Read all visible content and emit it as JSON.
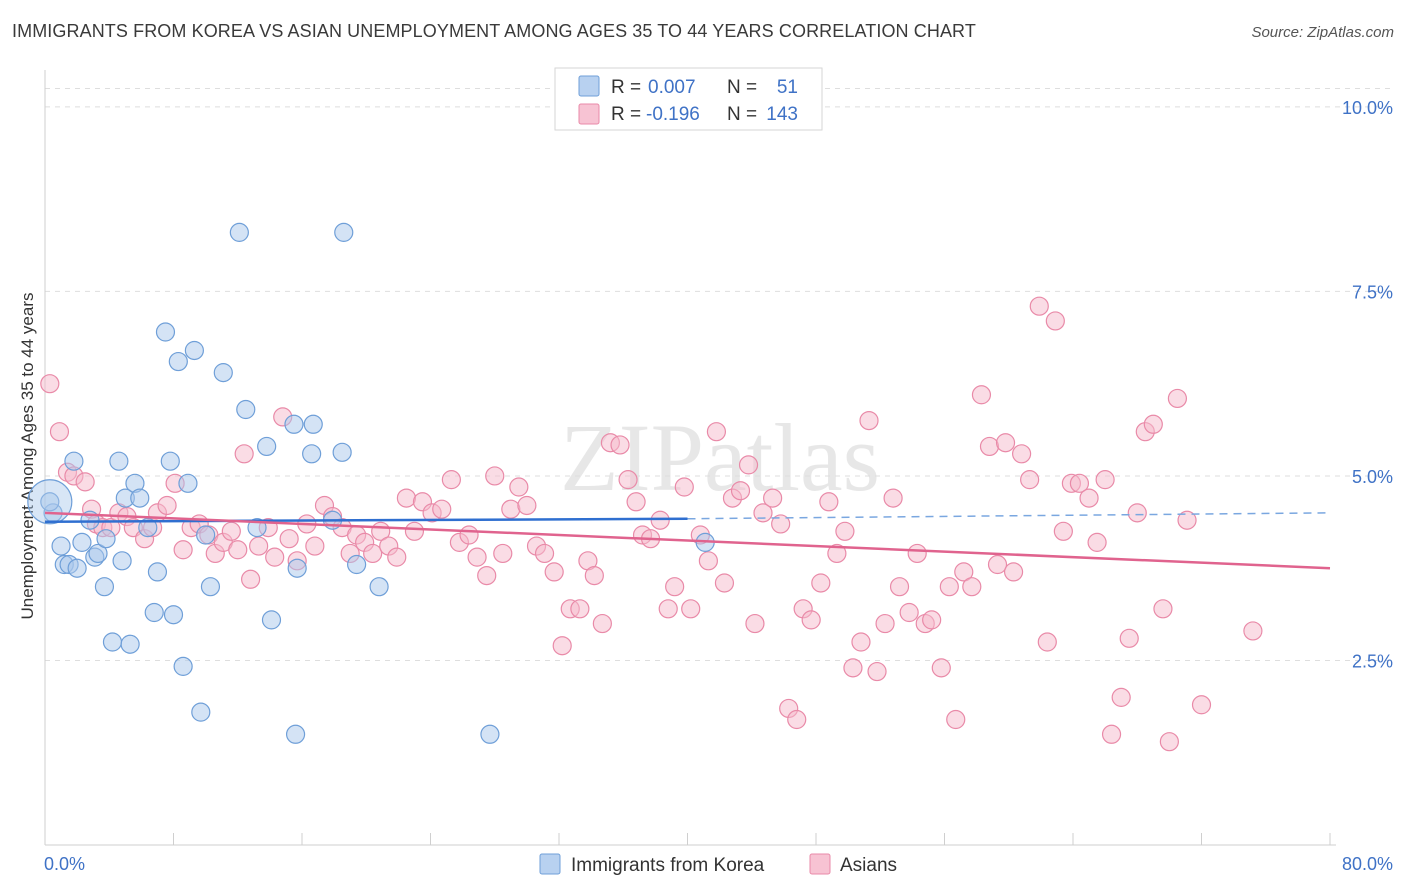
{
  "chart_data": {
    "type": "scatter",
    "title": "IMMIGRANTS FROM KOREA VS ASIAN UNEMPLOYMENT AMONG AGES 35 TO 44 YEARS CORRELATION CHART",
    "source": "Source: ZipAtlas.com",
    "watermark": "ZIPatlas",
    "xlabel": "",
    "ylabel": "Unemployment Among Ages 35 to 44 years",
    "xlim": [
      0,
      80
    ],
    "ylim": [
      0,
      10.5
    ],
    "x_tick_labels": [
      "0.0%",
      "80.0%"
    ],
    "y_ticks": [
      {
        "value": 2.5,
        "label": "2.5%"
      },
      {
        "value": 5.0,
        "label": "5.0%"
      },
      {
        "value": 7.5,
        "label": "7.5%"
      },
      {
        "value": 10.0,
        "label": "10.0%"
      }
    ],
    "legend_stats": [
      {
        "r_label": "R =",
        "r_value": "0.007",
        "n_label": "N =",
        "n_value": "51"
      },
      {
        "r_label": "R =",
        "r_value": "-0.196",
        "n_label": "N =",
        "n_value": "143"
      }
    ],
    "series": [
      {
        "name": "Immigrants from Korea",
        "color": "#a9c7ec",
        "stroke": "#6f9fd8",
        "line_color": "#2f6fd0",
        "trend": {
          "x0": 0,
          "y0": 4.38,
          "x1": 40,
          "y1": 4.42,
          "dash_to_x": 80,
          "dash_to_y": 4.5
        },
        "points": [
          [
            0.5,
            4.5
          ],
          [
            1.0,
            4.05
          ],
          [
            1.2,
            3.8
          ],
          [
            1.5,
            3.8
          ],
          [
            1.8,
            5.2
          ],
          [
            2.0,
            3.75
          ],
          [
            2.3,
            4.1
          ],
          [
            2.8,
            4.4
          ],
          [
            3.1,
            3.9
          ],
          [
            3.3,
            3.95
          ],
          [
            3.7,
            3.5
          ],
          [
            3.8,
            4.15
          ],
          [
            4.2,
            2.75
          ],
          [
            4.6,
            5.2
          ],
          [
            4.8,
            3.85
          ],
          [
            5.0,
            4.7
          ],
          [
            5.3,
            2.72
          ],
          [
            5.6,
            4.9
          ],
          [
            5.9,
            4.7
          ],
          [
            6.4,
            4.3
          ],
          [
            6.8,
            3.15
          ],
          [
            7.0,
            3.7
          ],
          [
            7.5,
            6.95
          ],
          [
            7.8,
            5.2
          ],
          [
            8.0,
            3.12
          ],
          [
            8.3,
            6.55
          ],
          [
            8.6,
            2.42
          ],
          [
            8.9,
            4.9
          ],
          [
            9.3,
            6.7
          ],
          [
            9.7,
            1.8
          ],
          [
            10.0,
            4.2
          ],
          [
            10.3,
            3.5
          ],
          [
            11.1,
            6.4
          ],
          [
            12.1,
            8.3
          ],
          [
            12.5,
            5.9
          ],
          [
            13.2,
            4.3
          ],
          [
            13.8,
            5.4
          ],
          [
            14.1,
            3.05
          ],
          [
            15.5,
            5.7
          ],
          [
            15.6,
            1.5
          ],
          [
            15.7,
            3.75
          ],
          [
            16.6,
            5.3
          ],
          [
            16.7,
            5.7
          ],
          [
            17.9,
            4.4
          ],
          [
            18.5,
            5.32
          ],
          [
            18.6,
            8.3
          ],
          [
            19.4,
            3.8
          ],
          [
            20.8,
            3.5
          ],
          [
            27.7,
            1.5
          ],
          [
            41.1,
            4.1
          ],
          [
            0.3,
            4.65
          ]
        ]
      },
      {
        "name": "Asians",
        "color": "#f5b9cc",
        "stroke": "#e98aa8",
        "line_color": "#e0638e",
        "trend": {
          "x0": 0,
          "y0": 4.5,
          "x1": 80,
          "y1": 3.75
        },
        "points": [
          [
            0.3,
            6.25
          ],
          [
            0.9,
            5.6
          ],
          [
            1.4,
            5.05
          ],
          [
            1.8,
            5.0
          ],
          [
            2.5,
            4.92
          ],
          [
            2.9,
            4.55
          ],
          [
            3.2,
            4.35
          ],
          [
            3.6,
            4.3
          ],
          [
            4.1,
            4.3
          ],
          [
            4.6,
            4.5
          ],
          [
            5.1,
            4.45
          ],
          [
            5.5,
            4.3
          ],
          [
            6.2,
            4.15
          ],
          [
            6.7,
            4.3
          ],
          [
            7.0,
            4.5
          ],
          [
            7.6,
            4.6
          ],
          [
            8.1,
            4.9
          ],
          [
            8.6,
            4.0
          ],
          [
            9.1,
            4.3
          ],
          [
            9.6,
            4.35
          ],
          [
            10.2,
            4.2
          ],
          [
            10.6,
            3.95
          ],
          [
            11.1,
            4.1
          ],
          [
            11.6,
            4.25
          ],
          [
            12.0,
            4.0
          ],
          [
            12.4,
            5.3
          ],
          [
            12.8,
            3.6
          ],
          [
            13.3,
            4.05
          ],
          [
            13.9,
            4.3
          ],
          [
            14.3,
            3.9
          ],
          [
            14.8,
            5.8
          ],
          [
            15.2,
            4.15
          ],
          [
            15.7,
            3.85
          ],
          [
            16.3,
            4.35
          ],
          [
            16.8,
            4.05
          ],
          [
            17.4,
            4.6
          ],
          [
            17.9,
            4.45
          ],
          [
            18.5,
            4.3
          ],
          [
            19.0,
            3.95
          ],
          [
            19.4,
            4.2
          ],
          [
            19.9,
            4.1
          ],
          [
            20.4,
            3.95
          ],
          [
            20.9,
            4.25
          ],
          [
            21.4,
            4.05
          ],
          [
            21.9,
            3.9
          ],
          [
            22.5,
            4.7
          ],
          [
            23.0,
            4.25
          ],
          [
            23.5,
            4.65
          ],
          [
            24.1,
            4.5
          ],
          [
            24.7,
            4.55
          ],
          [
            25.3,
            4.95
          ],
          [
            25.8,
            4.1
          ],
          [
            26.4,
            4.2
          ],
          [
            26.9,
            3.9
          ],
          [
            27.5,
            3.65
          ],
          [
            28.0,
            5.0
          ],
          [
            28.5,
            3.95
          ],
          [
            29.0,
            4.55
          ],
          [
            29.5,
            4.85
          ],
          [
            30.0,
            4.6
          ],
          [
            30.6,
            4.05
          ],
          [
            31.1,
            3.95
          ],
          [
            31.7,
            3.7
          ],
          [
            32.2,
            2.7
          ],
          [
            32.7,
            3.2
          ],
          [
            33.3,
            3.2
          ],
          [
            33.8,
            3.85
          ],
          [
            34.2,
            3.65
          ],
          [
            34.7,
            3.0
          ],
          [
            35.2,
            5.45
          ],
          [
            35.8,
            5.42
          ],
          [
            36.3,
            4.95
          ],
          [
            36.8,
            4.65
          ],
          [
            37.2,
            4.2
          ],
          [
            37.7,
            4.15
          ],
          [
            38.3,
            4.4
          ],
          [
            38.8,
            3.2
          ],
          [
            39.2,
            3.5
          ],
          [
            39.8,
            4.85
          ],
          [
            40.2,
            3.2
          ],
          [
            40.8,
            4.2
          ],
          [
            41.3,
            3.85
          ],
          [
            41.8,
            5.6
          ],
          [
            42.3,
            3.55
          ],
          [
            42.8,
            4.7
          ],
          [
            43.3,
            4.8
          ],
          [
            43.8,
            5.15
          ],
          [
            44.2,
            3.0
          ],
          [
            44.7,
            4.5
          ],
          [
            45.3,
            4.7
          ],
          [
            45.8,
            4.35
          ],
          [
            46.3,
            1.85
          ],
          [
            46.8,
            1.7
          ],
          [
            47.2,
            3.2
          ],
          [
            47.7,
            3.05
          ],
          [
            48.3,
            3.55
          ],
          [
            48.8,
            4.65
          ],
          [
            49.3,
            3.95
          ],
          [
            49.8,
            4.25
          ],
          [
            50.3,
            2.4
          ],
          [
            50.8,
            2.75
          ],
          [
            51.3,
            5.75
          ],
          [
            51.8,
            2.35
          ],
          [
            52.3,
            3.0
          ],
          [
            52.8,
            4.7
          ],
          [
            53.2,
            3.5
          ],
          [
            53.8,
            3.15
          ],
          [
            54.3,
            3.95
          ],
          [
            54.8,
            3.0
          ],
          [
            55.2,
            3.05
          ],
          [
            55.8,
            2.4
          ],
          [
            56.3,
            3.5
          ],
          [
            56.7,
            1.7
          ],
          [
            57.2,
            3.7
          ],
          [
            57.7,
            3.5
          ],
          [
            58.3,
            6.1
          ],
          [
            58.8,
            5.4
          ],
          [
            59.3,
            3.8
          ],
          [
            59.8,
            5.45
          ],
          [
            60.3,
            3.7
          ],
          [
            60.8,
            5.3
          ],
          [
            61.3,
            4.95
          ],
          [
            61.9,
            7.3
          ],
          [
            62.4,
            2.75
          ],
          [
            62.9,
            7.1
          ],
          [
            63.4,
            4.25
          ],
          [
            63.9,
            4.9
          ],
          [
            64.4,
            4.9
          ],
          [
            65.0,
            4.7
          ],
          [
            65.5,
            4.1
          ],
          [
            66.0,
            4.95
          ],
          [
            66.4,
            1.5
          ],
          [
            67.0,
            2.0
          ],
          [
            67.5,
            2.8
          ],
          [
            68.0,
            4.5
          ],
          [
            68.5,
            5.6
          ],
          [
            69.0,
            5.7
          ],
          [
            69.6,
            3.2
          ],
          [
            70.0,
            1.4
          ],
          [
            70.5,
            6.05
          ],
          [
            71.1,
            4.4
          ],
          [
            72.0,
            1.9
          ],
          [
            75.2,
            2.9
          ]
        ]
      }
    ]
  }
}
